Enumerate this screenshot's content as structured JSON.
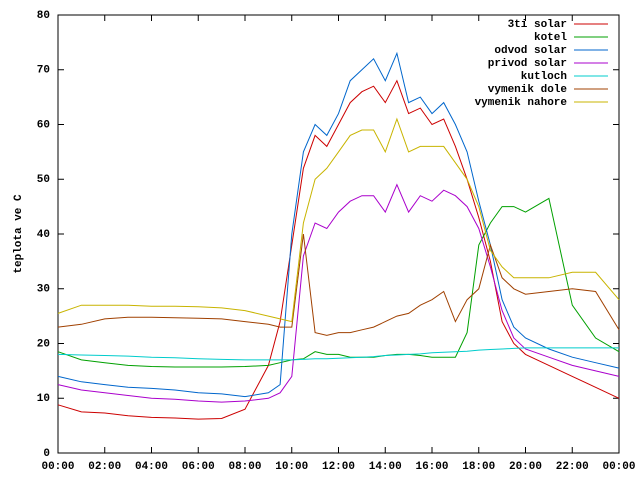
{
  "chart_data": {
    "type": "line",
    "ylabel": "teplota ve C",
    "x": [
      0,
      1,
      2,
      3,
      4,
      5,
      6,
      7,
      8,
      9,
      9.5,
      10,
      10.5,
      11,
      11.5,
      12,
      12.5,
      13,
      13.5,
      14,
      14.5,
      15,
      15.5,
      16,
      16.5,
      17,
      17.5,
      18,
      18.5,
      19,
      19.5,
      20,
      21,
      22,
      23,
      24
    ],
    "xlim": [
      0,
      24
    ],
    "xticks": [
      {
        "value": 0,
        "label": "00:00"
      },
      {
        "value": 2,
        "label": "02:00"
      },
      {
        "value": 4,
        "label": "04:00"
      },
      {
        "value": 6,
        "label": "06:00"
      },
      {
        "value": 8,
        "label": "08:00"
      },
      {
        "value": 10,
        "label": "10:00"
      },
      {
        "value": 12,
        "label": "12:00"
      },
      {
        "value": 14,
        "label": "14:00"
      },
      {
        "value": 16,
        "label": "16:00"
      },
      {
        "value": 18,
        "label": "18:00"
      },
      {
        "value": 20,
        "label": "20:00"
      },
      {
        "value": 22,
        "label": "22:00"
      },
      {
        "value": 24,
        "label": "00:00"
      }
    ],
    "ylim": [
      0,
      80
    ],
    "yticks": [
      0,
      10,
      20,
      30,
      40,
      50,
      60,
      70,
      80
    ],
    "legend": "top-right",
    "series": [
      {
        "name": "3ti solar",
        "color": "#cc0000",
        "values": [
          8.8,
          7.5,
          7.3,
          6.8,
          6.5,
          6.4,
          6.2,
          6.3,
          8,
          16,
          24,
          38,
          52,
          58,
          56,
          60,
          64,
          66,
          67,
          64,
          68,
          62,
          63,
          60,
          61,
          56,
          50,
          43,
          35,
          24,
          20,
          18,
          16,
          14,
          12,
          10
        ]
      },
      {
        "name": "kotel",
        "color": "#00a000",
        "values": [
          18.5,
          17,
          16.5,
          16,
          15.8,
          15.7,
          15.7,
          15.7,
          15.8,
          16,
          16.5,
          17,
          17.2,
          18.5,
          18,
          18,
          17.5,
          17.5,
          17.5,
          17.8,
          18,
          18,
          17.8,
          17.5,
          17.5,
          17.5,
          22,
          38,
          42,
          45,
          45,
          44,
          46.5,
          27,
          21,
          18.5
        ]
      },
      {
        "name": "odvod solar",
        "color": "#0066cc",
        "values": [
          14,
          13,
          12.5,
          12,
          11.8,
          11.5,
          11,
          10.8,
          10.3,
          11,
          12.5,
          40,
          55,
          60,
          58,
          62,
          68,
          70,
          72,
          68,
          73,
          64,
          65,
          62,
          64,
          60,
          55,
          46,
          38,
          28,
          23,
          21,
          19,
          17.5,
          16.5,
          15.5
        ]
      },
      {
        "name": "privod solar",
        "color": "#aa00cc",
        "values": [
          12.5,
          11.5,
          11,
          10.5,
          10,
          9.8,
          9.5,
          9.3,
          9.5,
          10,
          11,
          14,
          36,
          42,
          41,
          44,
          46,
          47,
          47,
          44,
          49,
          44,
          47,
          46,
          48,
          47,
          45,
          41,
          34,
          26,
          21,
          19,
          17.5,
          16,
          15,
          14
        ]
      },
      {
        "name": "kutloch",
        "color": "#00cccc",
        "values": [
          18,
          17.9,
          17.8,
          17.7,
          17.5,
          17.4,
          17.2,
          17.1,
          17,
          17,
          17,
          17,
          17.1,
          17.2,
          17.2,
          17.3,
          17.4,
          17.5,
          17.6,
          17.8,
          17.9,
          18,
          18.1,
          18.3,
          18.4,
          18.5,
          18.6,
          18.8,
          18.9,
          19,
          19.1,
          19.2,
          19.2,
          19.2,
          19.2,
          19.2
        ]
      },
      {
        "name": "vymenik dole",
        "color": "#a04000",
        "values": [
          23,
          23.5,
          24.5,
          24.8,
          24.8,
          24.7,
          24.6,
          24.5,
          24,
          23.5,
          23,
          23,
          40,
          22,
          21.5,
          22,
          22,
          22.5,
          23,
          24,
          25,
          25.5,
          27,
          28,
          29.5,
          24,
          28,
          30,
          38,
          32,
          30,
          29,
          29.5,
          30,
          29.5,
          22.5
        ]
      },
      {
        "name": "vymenik nahore",
        "color": "#c8b400",
        "values": [
          25.5,
          27,
          27,
          27,
          26.8,
          26.8,
          26.7,
          26.5,
          26,
          25,
          24.5,
          24,
          42,
          50,
          52,
          55,
          58,
          59,
          59,
          55,
          61,
          55,
          56,
          56,
          56,
          53,
          50,
          45,
          37,
          34,
          32,
          32,
          32,
          33,
          33,
          28
        ]
      }
    ]
  }
}
